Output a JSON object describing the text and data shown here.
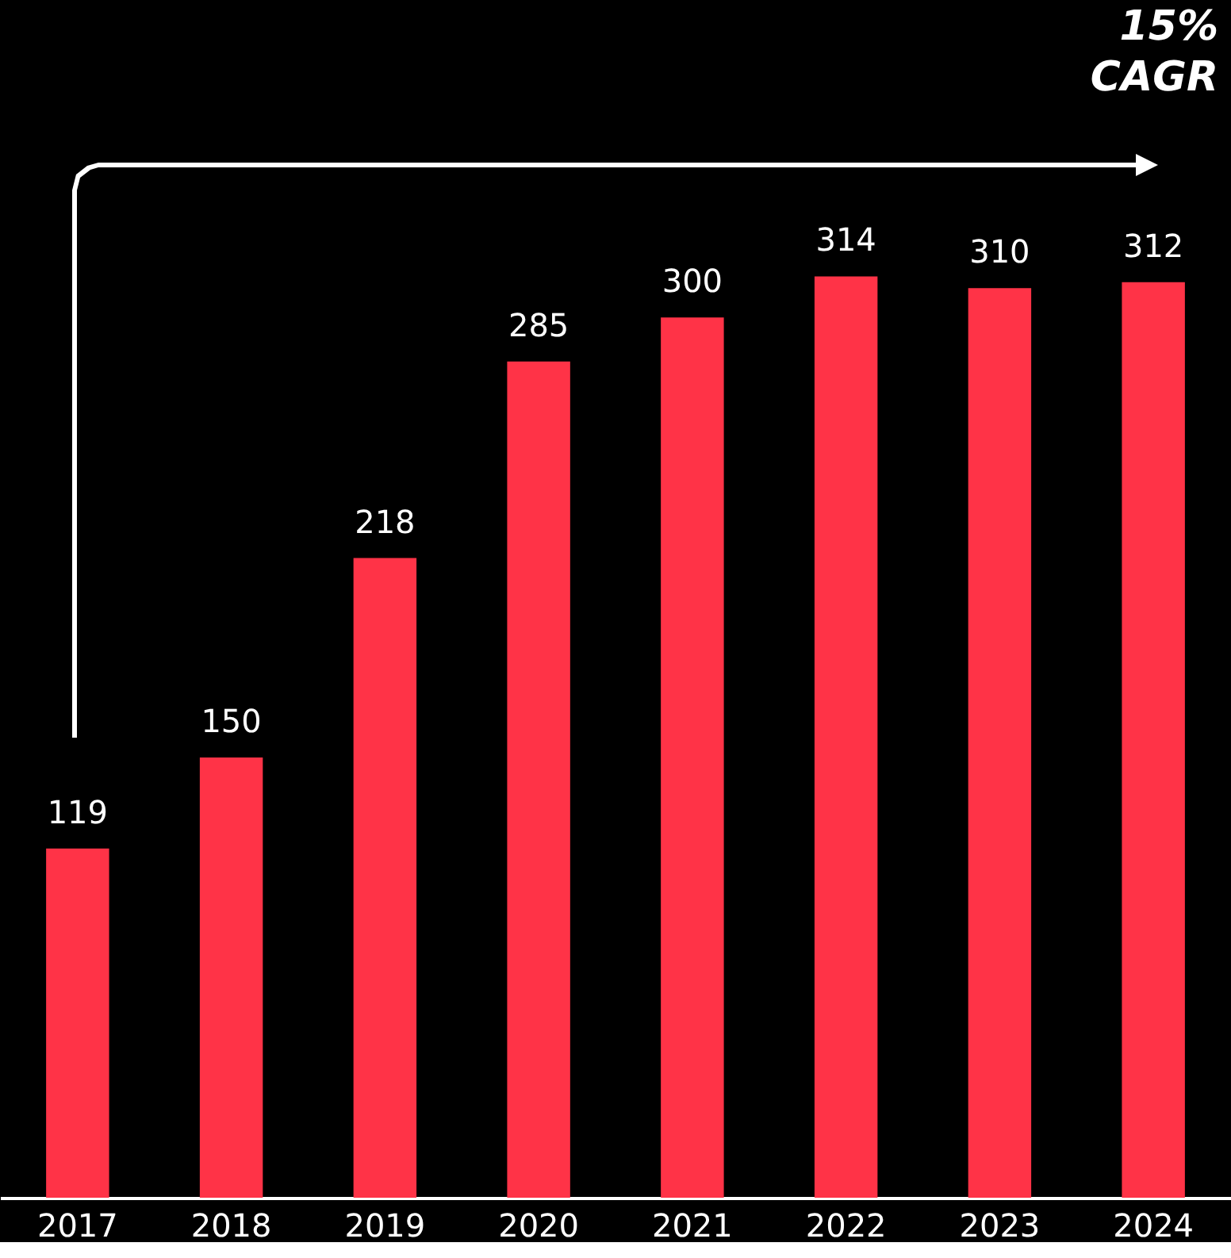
{
  "chart_data": {
    "type": "bar",
    "categories": [
      "2017",
      "2018",
      "2019",
      "2020",
      "2021",
      "2022",
      "2023",
      "2024"
    ],
    "values": [
      119,
      150,
      218,
      285,
      300,
      314,
      310,
      312
    ],
    "color": "#ff3347",
    "data_labels": true,
    "annotations": [
      "15%\nCAGR"
    ]
  }
}
